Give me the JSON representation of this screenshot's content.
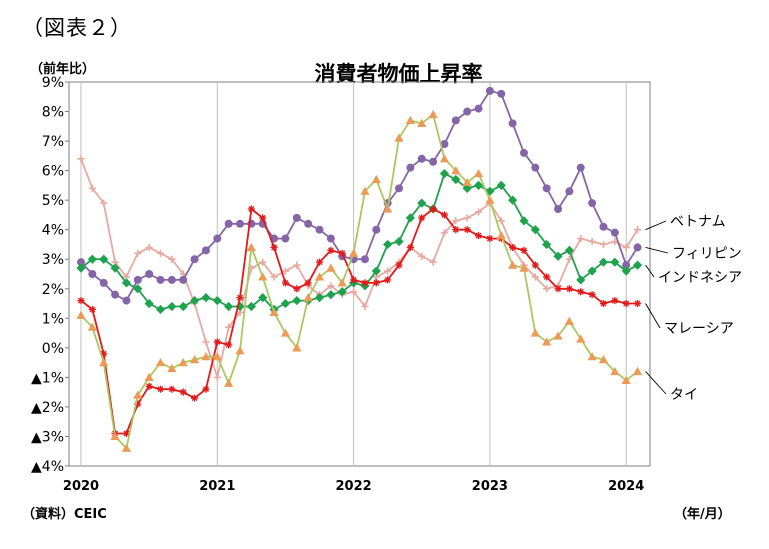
{
  "figure_label": "（図表２）",
  "unit_label": "（前年比）",
  "source_label": "（資料）CEIC",
  "axis_unit_label": "（年/月）",
  "chart_data": {
    "type": "line",
    "title": "消費者物価上昇率",
    "ylim": [
      -4,
      9
    ],
    "xlim": [
      2020.0,
      2024.16
    ],
    "y_ticks": [
      {
        "value": 9,
        "label": "9%"
      },
      {
        "value": 8,
        "label": "8%"
      },
      {
        "value": 7,
        "label": "7%"
      },
      {
        "value": 6,
        "label": "6%"
      },
      {
        "value": 5,
        "label": "5%"
      },
      {
        "value": 4,
        "label": "4%"
      },
      {
        "value": 3,
        "label": "3%"
      },
      {
        "value": 2,
        "label": "2%"
      },
      {
        "value": 1,
        "label": "1%"
      },
      {
        "value": 0,
        "label": "0%"
      },
      {
        "value": -1,
        "label": "▲1%"
      },
      {
        "value": -2,
        "label": "▲2%"
      },
      {
        "value": -3,
        "label": "▲3%"
      },
      {
        "value": -4,
        "label": "▲4%"
      }
    ],
    "x_ticks": [
      {
        "value": 2020,
        "label": "2020"
      },
      {
        "value": 2021,
        "label": "2021"
      },
      {
        "value": 2022,
        "label": "2022"
      },
      {
        "value": 2023,
        "label": "2023"
      },
      {
        "value": 2024,
        "label": "2024"
      }
    ],
    "grid": "vertical",
    "start": "2020-01",
    "series": [
      {
        "name": "ベトナム",
        "color": "#e8a9a1",
        "marker": "plus",
        "values": [
          6.4,
          5.4,
          4.9,
          2.9,
          2.4,
          3.2,
          3.4,
          3.2,
          3.0,
          2.5,
          1.5,
          0.2,
          -1.0,
          0.7,
          1.2,
          2.7,
          2.9,
          2.4,
          2.6,
          2.8,
          2.1,
          1.8,
          2.1,
          1.8,
          1.9,
          1.4,
          2.4,
          2.6,
          2.9,
          3.4,
          3.1,
          2.9,
          3.9,
          4.3,
          4.4,
          4.6,
          4.9,
          4.3,
          3.4,
          2.8,
          2.4,
          2.0,
          2.1,
          3.0,
          3.7,
          3.6,
          3.5,
          3.6,
          3.4,
          4.0
        ]
      },
      {
        "name": "フィリピン",
        "color": "#8565a8",
        "marker": "circle",
        "values": [
          2.9,
          2.5,
          2.2,
          1.8,
          1.6,
          2.3,
          2.5,
          2.3,
          2.3,
          2.3,
          3.0,
          3.3,
          3.7,
          4.2,
          4.2,
          4.2,
          4.2,
          3.7,
          3.7,
          4.4,
          4.2,
          4.0,
          3.7,
          3.1,
          3.0,
          3.0,
          4.0,
          4.9,
          5.4,
          6.1,
          6.4,
          6.3,
          6.9,
          7.7,
          8.0,
          8.1,
          8.7,
          8.6,
          7.6,
          6.6,
          6.1,
          5.4,
          4.7,
          5.3,
          6.1,
          4.9,
          4.1,
          3.9,
          2.8,
          3.4
        ]
      },
      {
        "name": "インドネシア",
        "color": "#1fa24e",
        "marker": "diamond",
        "values": [
          2.7,
          3.0,
          3.0,
          2.7,
          2.2,
          2.0,
          1.5,
          1.3,
          1.4,
          1.4,
          1.6,
          1.7,
          1.6,
          1.4,
          1.4,
          1.4,
          1.7,
          1.3,
          1.5,
          1.6,
          1.6,
          1.7,
          1.8,
          1.9,
          2.2,
          2.1,
          2.6,
          3.5,
          3.6,
          4.4,
          4.9,
          4.7,
          5.9,
          5.7,
          5.4,
          5.5,
          5.3,
          5.5,
          5.0,
          4.3,
          4.0,
          3.5,
          3.1,
          3.3,
          2.3,
          2.6,
          2.9,
          2.9,
          2.6,
          2.8
        ]
      },
      {
        "name": "マレーシア",
        "color": "#e31818",
        "marker": "star",
        "values": [
          1.6,
          1.3,
          -0.2,
          -2.9,
          -2.9,
          -1.9,
          -1.3,
          -1.4,
          -1.4,
          -1.5,
          -1.7,
          -1.4,
          0.2,
          0.1,
          1.7,
          4.7,
          4.4,
          3.4,
          2.2,
          2.0,
          2.2,
          2.9,
          3.3,
          3.2,
          2.3,
          2.2,
          2.2,
          2.3,
          2.8,
          3.4,
          4.4,
          4.7,
          4.5,
          4.0,
          4.0,
          3.8,
          3.7,
          3.7,
          3.4,
          3.3,
          2.8,
          2.4,
          2.0,
          2.0,
          1.9,
          1.8,
          1.5,
          1.6,
          1.5,
          1.5
        ]
      },
      {
        "name": "タイ",
        "color": "#a9c95f",
        "marker": "triangle",
        "marker_color": "#ee9a57",
        "values": [
          1.1,
          0.7,
          -0.5,
          -3.0,
          -3.4,
          -1.6,
          -1.0,
          -0.5,
          -0.7,
          -0.5,
          -0.4,
          -0.3,
          -0.3,
          -1.2,
          -0.1,
          3.4,
          2.4,
          1.2,
          0.5,
          0.0,
          1.7,
          2.4,
          2.7,
          2.2,
          3.2,
          5.3,
          5.7,
          4.7,
          7.1,
          7.7,
          7.6,
          7.9,
          6.4,
          6.0,
          5.6,
          5.9,
          5.0,
          3.8,
          2.8,
          2.7,
          0.5,
          0.2,
          0.4,
          0.9,
          0.3,
          -0.3,
          -0.4,
          -0.8,
          -1.1,
          -0.8
        ]
      }
    ]
  }
}
